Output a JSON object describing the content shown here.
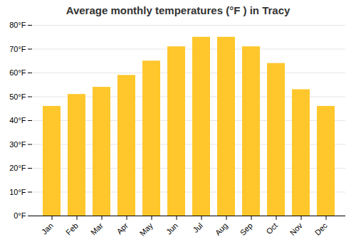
{
  "chart_data": {
    "type": "bar",
    "title": "Average monthly temperatures (°F ) in Tracy",
    "categories": [
      "Jan",
      "Feb",
      "Mar",
      "Apr",
      "May",
      "Jun",
      "Jul",
      "Aug",
      "Sep",
      "Oct",
      "Nov",
      "Dec"
    ],
    "values": [
      46,
      51,
      54,
      59,
      65,
      71,
      75,
      75,
      71,
      64,
      53,
      46
    ],
    "color": "#FFC72C",
    "ylim": [
      0,
      80
    ],
    "yticks": [
      {
        "value": 0,
        "label": "0°F"
      },
      {
        "value": 10,
        "label": "10°F"
      },
      {
        "value": 20,
        "label": "20°F"
      },
      {
        "value": 30,
        "label": "30°F"
      },
      {
        "value": 40,
        "label": "40°F"
      },
      {
        "value": 50,
        "label": "50°F"
      },
      {
        "value": 60,
        "label": "60°F"
      },
      {
        "value": 70,
        "label": "70°F"
      },
      {
        "value": 80,
        "label": "80°F"
      }
    ],
    "grid": true
  }
}
